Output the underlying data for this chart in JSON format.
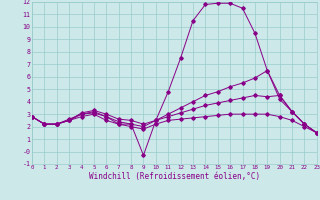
{
  "xlabel": "Windchill (Refroidissement éolien,°C)",
  "background_color": "#cce8e8",
  "line_color": "#880088",
  "grid_color": "#99cccc",
  "xmin": 0,
  "xmax": 23,
  "ymin": -1,
  "ymax": 12,
  "lines": [
    {
      "x": [
        0,
        1,
        2,
        3,
        4,
        5,
        6,
        7,
        8,
        9,
        10,
        11,
        12,
        13,
        14,
        15,
        16,
        17,
        18,
        19,
        20,
        21,
        22,
        23
      ],
      "y": [
        2.8,
        2.2,
        2.2,
        2.6,
        3.0,
        3.2,
        2.8,
        2.2,
        2.2,
        -0.3,
        2.5,
        4.8,
        7.5,
        10.5,
        11.8,
        11.9,
        11.9,
        11.5,
        9.5,
        6.5,
        4.5,
        3.2,
        2.2,
        1.5
      ]
    },
    {
      "x": [
        0,
        1,
        2,
        3,
        4,
        5,
        6,
        7,
        8,
        9,
        10,
        11,
        12,
        13,
        14,
        15,
        16,
        17,
        18,
        19,
        20,
        21,
        22,
        23
      ],
      "y": [
        2.8,
        2.2,
        2.2,
        2.5,
        3.1,
        3.3,
        3.0,
        2.6,
        2.5,
        2.2,
        2.5,
        3.0,
        3.5,
        4.0,
        4.5,
        4.8,
        5.2,
        5.5,
        5.9,
        6.5,
        4.2,
        3.2,
        2.2,
        1.5
      ]
    },
    {
      "x": [
        0,
        1,
        2,
        3,
        4,
        5,
        6,
        7,
        8,
        9,
        10,
        11,
        12,
        13,
        14,
        15,
        16,
        17,
        18,
        19,
        20,
        21,
        22,
        23
      ],
      "y": [
        2.8,
        2.2,
        2.2,
        2.5,
        3.0,
        3.1,
        2.8,
        2.4,
        2.2,
        2.0,
        2.5,
        2.8,
        3.1,
        3.4,
        3.7,
        3.9,
        4.1,
        4.3,
        4.5,
        4.4,
        4.5,
        3.2,
        2.2,
        1.5
      ]
    },
    {
      "x": [
        0,
        1,
        2,
        3,
        4,
        5,
        6,
        7,
        8,
        9,
        10,
        11,
        12,
        13,
        14,
        15,
        16,
        17,
        18,
        19,
        20,
        21,
        22,
        23
      ],
      "y": [
        2.8,
        2.2,
        2.2,
        2.5,
        2.8,
        3.0,
        2.5,
        2.2,
        2.0,
        1.8,
        2.2,
        2.5,
        2.6,
        2.7,
        2.8,
        2.9,
        3.0,
        3.0,
        3.0,
        3.0,
        2.8,
        2.5,
        2.0,
        1.5
      ]
    }
  ]
}
